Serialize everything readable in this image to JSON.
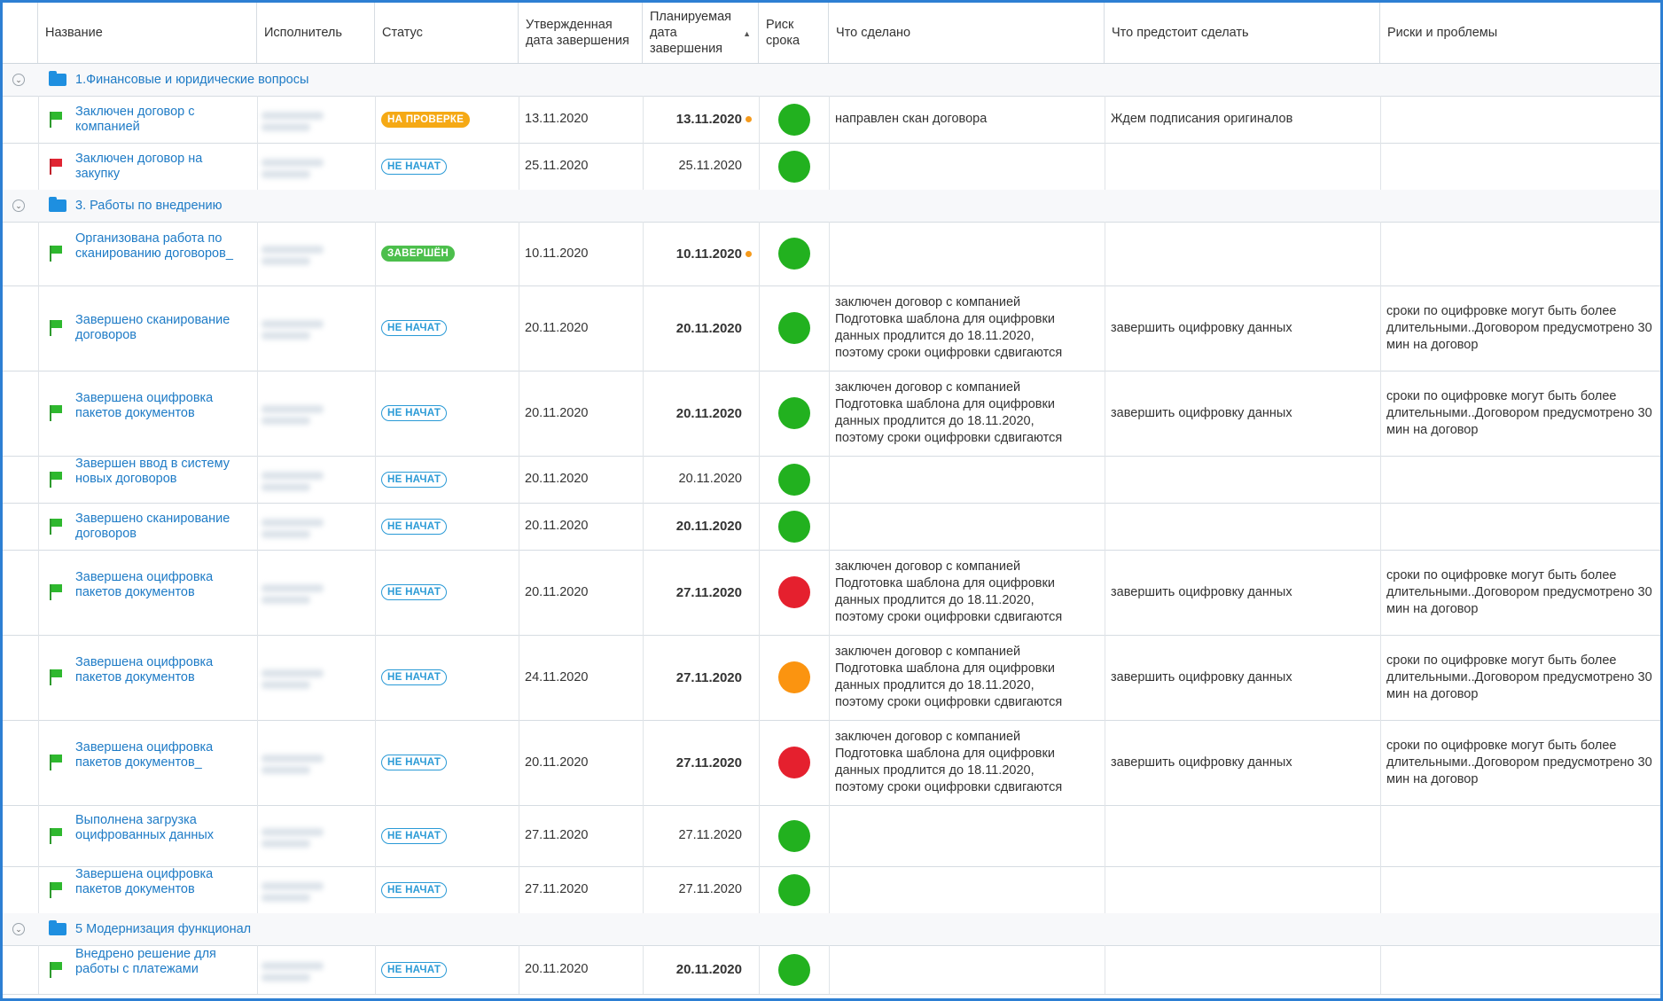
{
  "header": {
    "name": "Название",
    "executor": "Исполнитель",
    "status": "Статус",
    "approved_date": "Утвержденная дата завершения",
    "planned_date": "Планируемая дата завершения",
    "risk": "Риск срока",
    "done": "Что сделано",
    "todo": "Что предстоит сделать",
    "risks": "Риски и проблемы",
    "sort_icon": "sort-ascending-icon"
  },
  "groups": [
    {
      "title": "1.Финансовые и юридические вопросы"
    },
    {
      "title": "3. Работы по внедрению"
    },
    {
      "title": "5 Модернизация функционал"
    }
  ],
  "tasks": [
    {
      "name": "Заключен договор с компанией",
      "flag": "green",
      "status": "НА ПРОВЕРКЕ",
      "approved": "13.11.2020",
      "planned": "13.11.2020",
      "planned_bold": true,
      "warn": true,
      "risk_color": "#22b11f",
      "done": "направлен скан договора",
      "todo": "Ждем подписания оригиналов",
      "risks": ""
    },
    {
      "name": "Заключен договор на закупку",
      "flag": "red",
      "status": "НЕ НАЧАТ",
      "approved": "25.11.2020",
      "planned": "25.11.2020",
      "planned_bold": false,
      "warn": false,
      "risk_color": "#22b11f",
      "done": "",
      "todo": "",
      "risks": ""
    },
    {
      "name": "Организована работа по сканированию договоров_",
      "flag": "green",
      "status": "ЗАВЕРШЁН",
      "approved": "10.11.2020",
      "planned": "10.11.2020",
      "planned_bold": true,
      "warn": true,
      "risk_color": "#22b11f",
      "done": "",
      "todo": "",
      "risks": ""
    },
    {
      "name": "Завершено сканирование договоров",
      "flag": "green",
      "status": "НЕ НАЧАТ",
      "approved": "20.11.2020",
      "planned": "20.11.2020",
      "planned_bold": true,
      "warn": false,
      "risk_color": "#22b11f",
      "done": "заключен договор с компанией\nПодготовка шаблона для оцифровки данных продлится до 18.11.2020, поэтому сроки оцифровки сдвигаются",
      "todo": "завершить оцифровку данных",
      "risks": "сроки по оцифровке могут быть более длительными..Договором предусмотрено 30 мин на договор"
    },
    {
      "name": "Завершена оцифровка пакетов документов",
      "flag": "green",
      "status": "НЕ НАЧАТ",
      "approved": "20.11.2020",
      "planned": "20.11.2020",
      "planned_bold": true,
      "warn": false,
      "risk_color": "#22b11f",
      "done": "заключен договор с компанией\nПодготовка шаблона для оцифровки данных продлится до 18.11.2020, поэтому сроки оцифровки сдвигаются",
      "todo": "завершить оцифровку данных",
      "risks": "сроки по оцифровке могут быть более длительными..Договором предусмотрено 30 мин на договор"
    },
    {
      "name": "Завершен ввод в систему новых договоров",
      "flag": "green",
      "status": "НЕ НАЧАТ",
      "approved": "20.11.2020",
      "planned": "20.11.2020",
      "planned_bold": false,
      "warn": false,
      "risk_color": "#22b11f",
      "done": "",
      "todo": "",
      "risks": ""
    },
    {
      "name": "Завершено сканирование договоров",
      "flag": "green",
      "status": "НЕ НАЧАТ",
      "approved": "20.11.2020",
      "planned": "20.11.2020",
      "planned_bold": true,
      "warn": false,
      "risk_color": "#22b11f",
      "done": "",
      "todo": "",
      "risks": ""
    },
    {
      "name": "Завершена оцифровка пакетов документов",
      "flag": "green",
      "status": "НЕ НАЧАТ",
      "approved": "20.11.2020",
      "planned": "27.11.2020",
      "planned_bold": true,
      "warn": false,
      "risk_color": "#e5202e",
      "done": "заключен договор с компанией\nПодготовка шаблона для оцифровки данных продлится до 18.11.2020, поэтому сроки оцифровки сдвигаются",
      "todo": "завершить оцифровку данных",
      "risks": "сроки по оцифровке могут быть более длительными..Договором предусмотрено 30 мин на договор"
    },
    {
      "name": "Завершена оцифровка пакетов документов",
      "flag": "green",
      "status": "НЕ НАЧАТ",
      "approved": "24.11.2020",
      "planned": "27.11.2020",
      "planned_bold": true,
      "warn": false,
      "risk_color": "#fb9410",
      "done": "заключен договор с компанией\nПодготовка шаблона для оцифровки данных продлится до 18.11.2020, поэтому сроки оцифровки сдвигаются",
      "todo": "завершить оцифровку данных",
      "risks": "сроки по оцифровке могут быть более длительными..Договором предусмотрено 30 мин на договор"
    },
    {
      "name": "Завершена оцифровка пакетов документов_",
      "flag": "green",
      "status": "НЕ НАЧАТ",
      "approved": "20.11.2020",
      "planned": "27.11.2020",
      "planned_bold": true,
      "warn": false,
      "risk_color": "#e5202e",
      "done": "заключен договор с компанией\nПодготовка шаблона для оцифровки данных продлится до 18.11.2020, поэтому сроки оцифровки сдвигаются",
      "todo": "завершить оцифровку данных",
      "risks": "сроки по оцифровке могут быть более длительными..Договором предусмотрено 30 мин на договор"
    },
    {
      "name": "Выполнена загрузка оцифрованных данных",
      "flag": "green",
      "status": "НЕ НАЧАТ",
      "approved": "27.11.2020",
      "planned": "27.11.2020",
      "planned_bold": false,
      "warn": false,
      "risk_color": "#22b11f",
      "done": "",
      "todo": "",
      "risks": ""
    },
    {
      "name": "Завершена оцифровка пакетов документов",
      "flag": "green",
      "status": "НЕ НАЧАТ",
      "approved": "27.11.2020",
      "planned": "27.11.2020",
      "planned_bold": false,
      "warn": false,
      "risk_color": "#22b11f",
      "done": "",
      "todo": "",
      "risks": ""
    },
    {
      "name": "Внедрено решение для работы с платежами",
      "flag": "green",
      "status": "НЕ НАЧАТ",
      "approved": "20.11.2020",
      "planned": "20.11.2020",
      "planned_bold": true,
      "warn": false,
      "risk_color": "#22b11f",
      "done": "",
      "todo": "",
      "risks": ""
    }
  ]
}
